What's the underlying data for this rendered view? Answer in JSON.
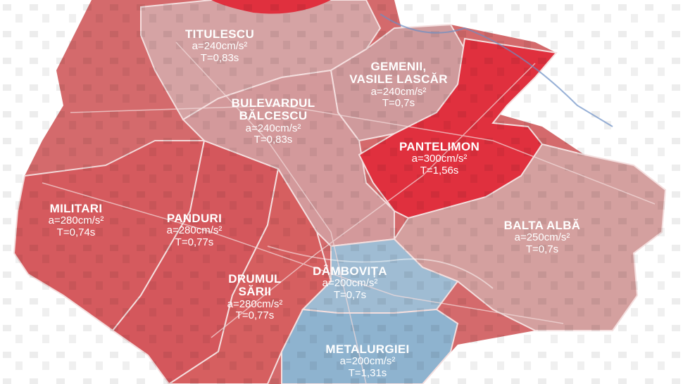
{
  "map": {
    "colors": {
      "zone_high": "#e0303e",
      "zone_mid": "#d65a5e",
      "zone_low": "#cf9a9c",
      "zone_blue": "#8eb3cf",
      "border": "#f4dede"
    },
    "zones": [
      {
        "id": "titulescu",
        "name": "TITULESCU",
        "accel": "a=240cm/s²",
        "period": "T=0,83s"
      },
      {
        "id": "gemenii",
        "name": "GEMENII,",
        "name2": "VASILE LASCĂR",
        "accel": "a=240cm/s²",
        "period": "T=0,7s"
      },
      {
        "id": "balcescu",
        "name": "BULEVARDUL",
        "name2": "BĂLCESCU",
        "accel": "a=240cm/s²",
        "period": "T=0,83s"
      },
      {
        "id": "pantelimon",
        "name": "PANTELIMON",
        "accel": "a=300cm/s²",
        "period": "T=1,56s"
      },
      {
        "id": "militari",
        "name": "MILITARI",
        "accel": "a=280cm/s²",
        "period": "T=0,74s"
      },
      {
        "id": "panduri",
        "name": "PANDURI",
        "accel": "a=280cm/s²",
        "period": "T=0,77s"
      },
      {
        "id": "balta-alba",
        "name": "BALTA ALBĂ",
        "accel": "a=250cm/s²",
        "period": "T=0,7s"
      },
      {
        "id": "drumul-sarii",
        "name": "DRUMUL",
        "name2": "SĂRII",
        "accel": "a=280cm/s²",
        "period": "T=0,77s"
      },
      {
        "id": "dambovita",
        "name": "DÂMBOVIȚA",
        "accel": "a=200cm/s²",
        "period": "T=0,7s"
      },
      {
        "id": "metalurgiei",
        "name": "METALURGIEI",
        "accel": "a=200cm/s²",
        "period": "T=1,31s"
      }
    ]
  }
}
